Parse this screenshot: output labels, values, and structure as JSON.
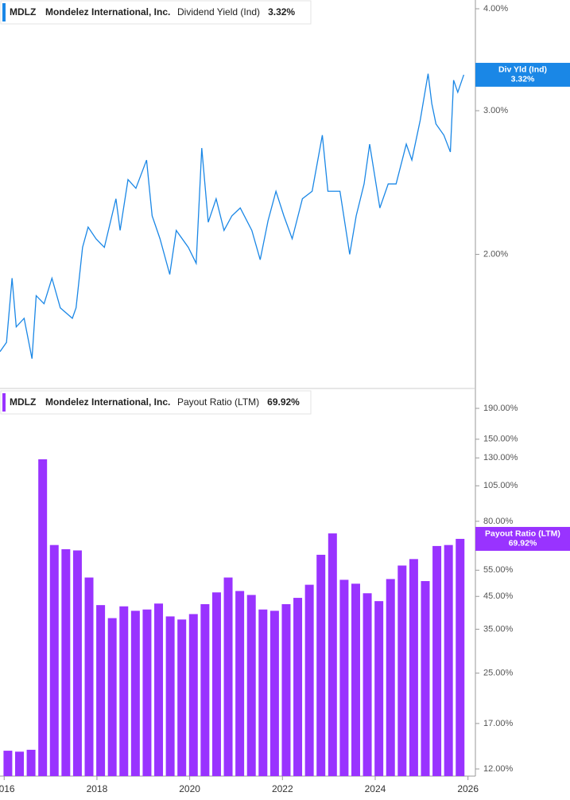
{
  "chart_data": [
    {
      "type": "line",
      "header": {
        "ticker": "MDLZ",
        "company": "Mondelez International, Inc.",
        "metric": "Dividend Yield (Ind)",
        "last_value_label": "3.32%"
      },
      "marker_label": "Div Yld (Ind)",
      "color": "#1a87e6",
      "log_scale": true,
      "grid": false,
      "x": [
        2015.91,
        2016.05,
        2016.17,
        2016.26,
        2016.43,
        2016.6,
        2016.69,
        2016.86,
        2017.03,
        2017.21,
        2017.47,
        2017.55,
        2017.69,
        2017.81,
        2017.98,
        2018.16,
        2018.41,
        2018.5,
        2018.67,
        2018.84,
        2019.07,
        2019.19,
        2019.36,
        2019.57,
        2019.71,
        2019.97,
        2020.14,
        2020.26,
        2020.4,
        2020.57,
        2020.74,
        2020.91,
        2021.09,
        2021.34,
        2021.52,
        2021.69,
        2021.86,
        2022.03,
        2022.21,
        2022.43,
        2022.64,
        2022.86,
        2022.98,
        2023.24,
        2023.45,
        2023.59,
        2023.76,
        2023.88,
        2024.1,
        2024.28,
        2024.45,
        2024.67,
        2024.79,
        2024.97,
        2025.14,
        2025.22,
        2025.31,
        2025.48,
        2025.62,
        2025.69,
        2025.78,
        2025.91
      ],
      "values": [
        1.52,
        1.56,
        1.87,
        1.63,
        1.67,
        1.49,
        1.78,
        1.74,
        1.87,
        1.72,
        1.67,
        1.72,
        2.04,
        2.16,
        2.09,
        2.04,
        2.34,
        2.14,
        2.47,
        2.41,
        2.61,
        2.23,
        2.09,
        1.89,
        2.14,
        2.04,
        1.95,
        2.7,
        2.19,
        2.34,
        2.14,
        2.23,
        2.28,
        2.14,
        1.97,
        2.2,
        2.39,
        2.23,
        2.09,
        2.34,
        2.39,
        2.8,
        2.39,
        2.39,
        2.0,
        2.23,
        2.44,
        2.73,
        2.28,
        2.44,
        2.44,
        2.73,
        2.61,
        2.92,
        3.33,
        3.06,
        2.89,
        2.8,
        2.67,
        3.27,
        3.16,
        3.32
      ],
      "xlim": [
        2015.91,
        2026.16
      ],
      "ylim": [
        1.37,
        4.1
      ],
      "yticks": [
        {
          "value": 2,
          "label": "2.00%"
        },
        {
          "value": 3,
          "label": "3.00%"
        },
        {
          "value": 4,
          "label": "4.00%"
        }
      ]
    },
    {
      "type": "bar",
      "header": {
        "ticker": "MDLZ",
        "company": "Mondelez International, Inc.",
        "metric": "Payout Ratio (LTM)",
        "last_value_label": "69.92%"
      },
      "marker_label": "Payout Ratio (LTM)",
      "color": "#9933ff",
      "log_scale": true,
      "grid": false,
      "x": [
        2016.08,
        2016.33,
        2016.58,
        2016.83,
        2017.08,
        2017.33,
        2017.58,
        2017.83,
        2018.08,
        2018.33,
        2018.58,
        2018.83,
        2019.08,
        2019.33,
        2019.58,
        2019.83,
        2020.08,
        2020.33,
        2020.58,
        2020.83,
        2021.08,
        2021.33,
        2021.58,
        2021.83,
        2022.08,
        2022.33,
        2022.58,
        2022.83,
        2023.08,
        2023.33,
        2023.58,
        2023.83,
        2024.08,
        2024.33,
        2024.58,
        2024.83,
        2025.08,
        2025.33,
        2025.58,
        2025.83
      ],
      "values": [
        13.8,
        13.7,
        13.9,
        128.6,
        66.7,
        64.6,
        64.0,
        52.0,
        42.1,
        38.1,
        41.7,
        40.3,
        40.7,
        42.6,
        38.6,
        37.7,
        39.3,
        42.4,
        46.4,
        52.0,
        46.9,
        45.5,
        40.7,
        40.3,
        42.4,
        44.5,
        49.2,
        61.9,
        72.9,
        51.1,
        49.6,
        46.1,
        43.4,
        51.4,
        57.0,
        59.9,
        50.6,
        66.2,
        66.7,
        69.92
      ],
      "xlim": [
        2015.91,
        2026.16
      ],
      "xticks": [
        2016,
        2018,
        2020,
        2022,
        2024,
        2026
      ],
      "ylim": [
        11.36,
        218.6
      ],
      "yticks": [
        {
          "value": 12,
          "label": "12.00%"
        },
        {
          "value": 17,
          "label": "17.00%"
        },
        {
          "value": 25,
          "label": "25.00%"
        },
        {
          "value": 35,
          "label": "35.00%"
        },
        {
          "value": 45,
          "label": "45.00%"
        },
        {
          "value": 55,
          "label": "55.00%"
        },
        {
          "value": 80,
          "label": "80.00%"
        },
        {
          "value": 105,
          "label": "105.00%"
        },
        {
          "value": 130,
          "label": "130.00%"
        },
        {
          "value": 150,
          "label": "150.00%"
        },
        {
          "value": 190,
          "label": "190.00%"
        }
      ]
    }
  ]
}
